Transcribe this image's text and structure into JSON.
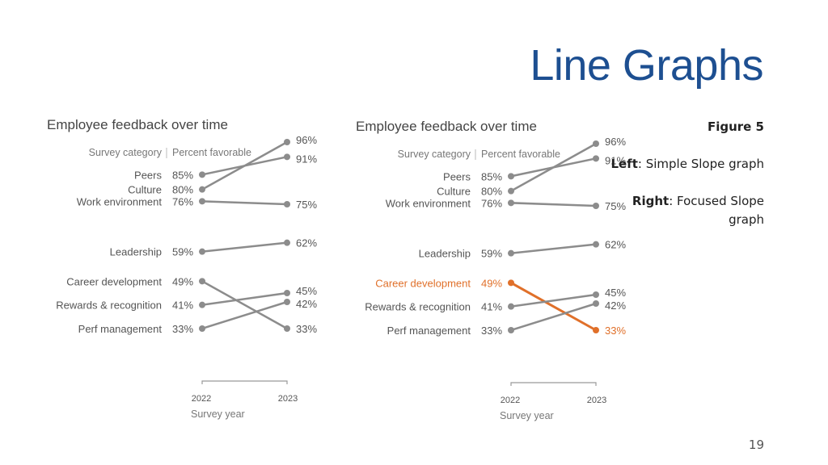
{
  "slide": {
    "title": "Line Graphs",
    "figure_label": "Figure 5",
    "left_key": "Left",
    "left_desc": ": Simple Slope graph",
    "right_key": "Right",
    "right_desc": ": Focused Slope graph",
    "page_number": "19"
  },
  "colors": {
    "gray": "#8c8c8c",
    "highlight": "#e0702a",
    "title": "#1d4f91"
  },
  "chart_data": [
    {
      "type": "line",
      "title": "Employee feedback over time",
      "category_header": "Survey category",
      "value_header": "Percent favorable",
      "xlabel": "Survey year",
      "x": [
        "2022",
        "2023"
      ],
      "highlight": null,
      "series": [
        {
          "name": "Peers",
          "values": [
            85,
            91
          ]
        },
        {
          "name": "Culture",
          "values": [
            80,
            96
          ]
        },
        {
          "name": "Work environment",
          "values": [
            76,
            75
          ]
        },
        {
          "name": "Leadership",
          "values": [
            59,
            62
          ]
        },
        {
          "name": "Career development",
          "values": [
            49,
            33
          ]
        },
        {
          "name": "Rewards & recognition",
          "values": [
            41,
            45
          ]
        },
        {
          "name": "Perf management",
          "values": [
            33,
            42
          ]
        }
      ]
    },
    {
      "type": "line",
      "title": "Employee feedback over time",
      "category_header": "Survey category",
      "value_header": "Percent favorable",
      "xlabel": "Survey year",
      "x": [
        "2022",
        "2023"
      ],
      "highlight": "Career development",
      "series": [
        {
          "name": "Peers",
          "values": [
            85,
            91
          ]
        },
        {
          "name": "Culture",
          "values": [
            80,
            96
          ]
        },
        {
          "name": "Work environment",
          "values": [
            76,
            75
          ]
        },
        {
          "name": "Leadership",
          "values": [
            59,
            62
          ]
        },
        {
          "name": "Career development",
          "values": [
            49,
            33
          ]
        },
        {
          "name": "Rewards & recognition",
          "values": [
            41,
            45
          ]
        },
        {
          "name": "Perf management",
          "values": [
            33,
            42
          ]
        }
      ]
    }
  ]
}
